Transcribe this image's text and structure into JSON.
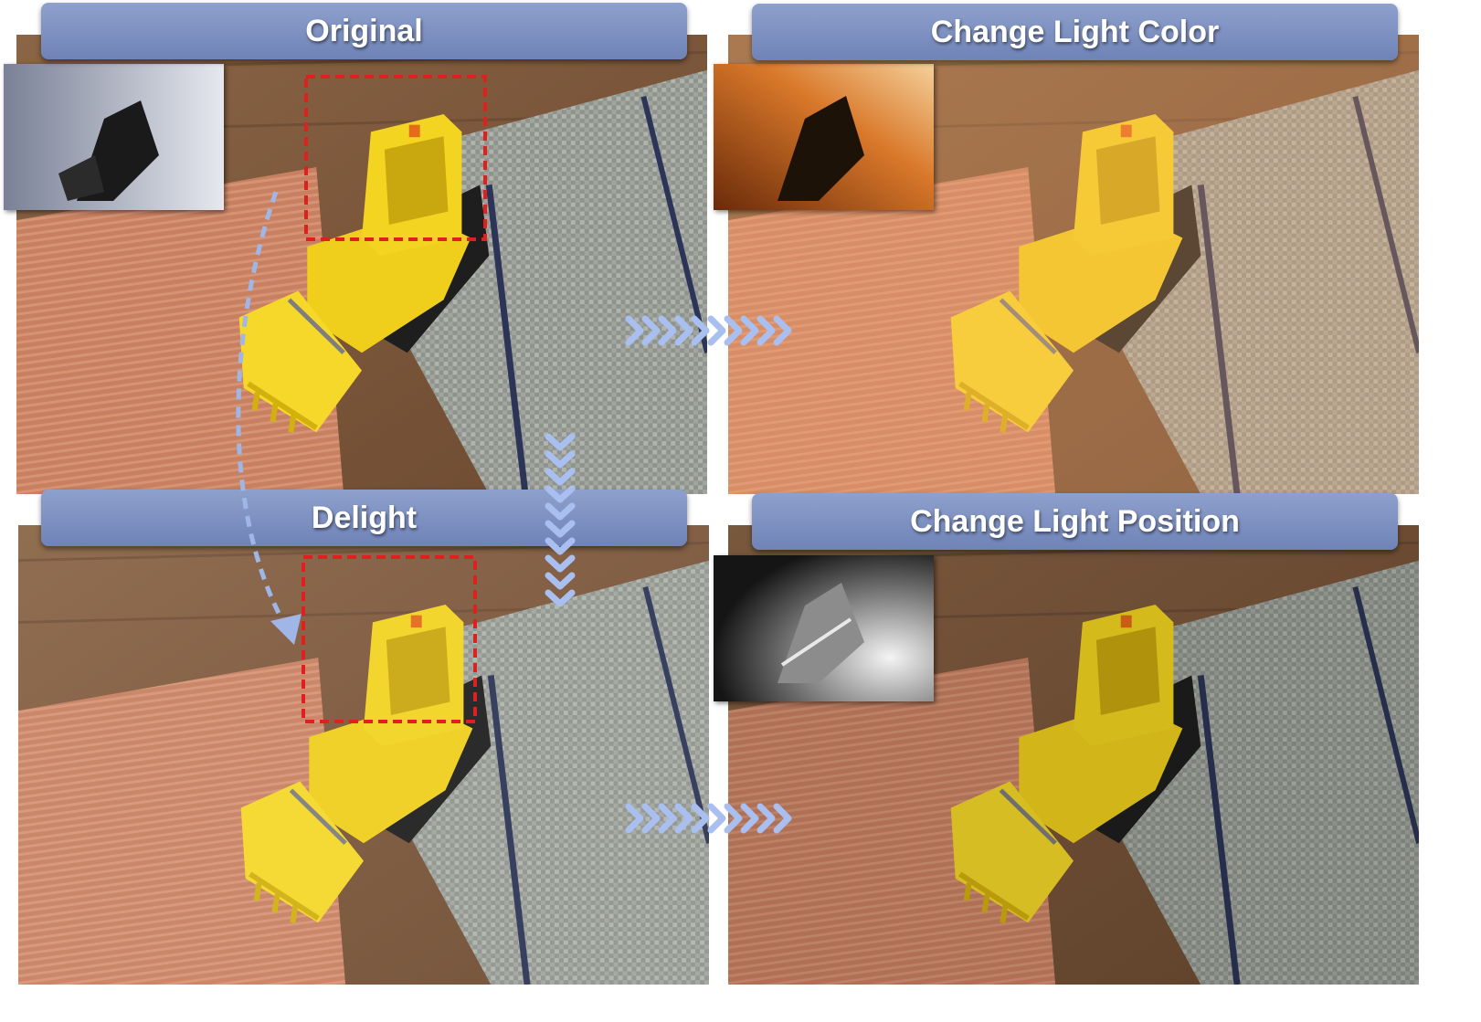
{
  "panels": {
    "original": {
      "title": "Original"
    },
    "change_light_color": {
      "title": "Change Light Color"
    },
    "delight": {
      "title": "Delight"
    },
    "change_light_position": {
      "title": "Change Light Position"
    }
  },
  "colors": {
    "title_bar": "#7789bd",
    "highlight_box": "#e0201f",
    "arrows": "#a9bff0",
    "dashed_path": "#9fb6e6",
    "toy": "#f2d21a"
  }
}
